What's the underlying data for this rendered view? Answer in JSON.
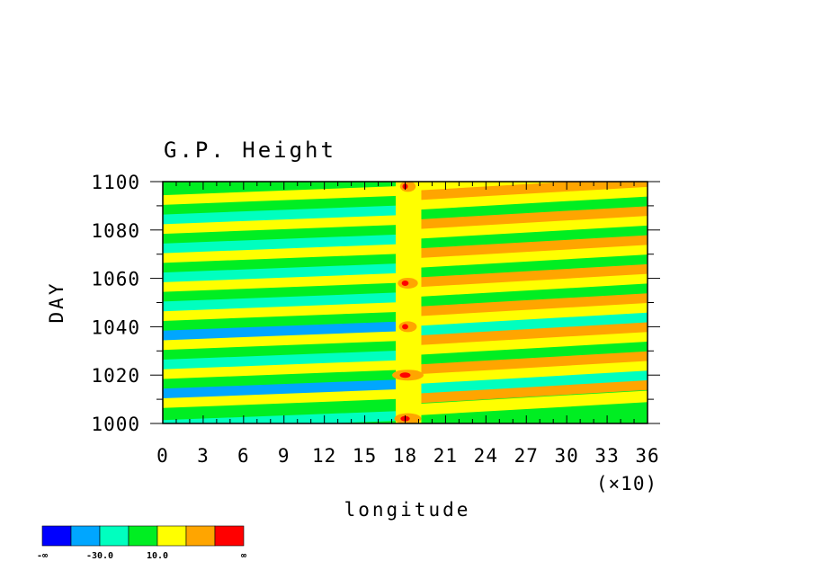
{
  "chart_data": {
    "type": "heatmap",
    "title": "G.P. Height",
    "xlabel": "longitude",
    "ylabel": "DAY",
    "x_scale_note": "(×10)",
    "xlim": [
      0,
      36
    ],
    "ylim": [
      1000,
      1100
    ],
    "x_ticks": [
      "0",
      "3",
      "6",
      "9",
      "12",
      "15",
      "18",
      "21",
      "24",
      "27",
      "30",
      "33",
      "36"
    ],
    "y_ticks": [
      "1000",
      "1020",
      "1040",
      "1060",
      "1080",
      "1100"
    ],
    "colorbar": {
      "colors": [
        "#0000ff",
        "#00a6ff",
        "#00ffbf",
        "#00ee22",
        "#ffff00",
        "#ffa500",
        "#ff0000"
      ],
      "labels": [
        "-∞",
        "-30.0",
        "10.0",
        "∞"
      ]
    },
    "bands": [
      {
        "day": 1002,
        "level": 2
      },
      {
        "day": 1006,
        "level": 3
      },
      {
        "day": 1011,
        "level": 4
      },
      {
        "day": 1015,
        "level": 1
      },
      {
        "day": 1019,
        "level": 3
      },
      {
        "day": 1023,
        "level": 4
      },
      {
        "day": 1027,
        "level": 2
      },
      {
        "day": 1031,
        "level": 3
      },
      {
        "day": 1035,
        "level": 4
      },
      {
        "day": 1039,
        "level": 1
      },
      {
        "day": 1043,
        "level": 3
      },
      {
        "day": 1047,
        "level": 4
      },
      {
        "day": 1051,
        "level": 2
      },
      {
        "day": 1055,
        "level": 3
      },
      {
        "day": 1059,
        "level": 4
      },
      {
        "day": 1063,
        "level": 2
      },
      {
        "day": 1067,
        "level": 3
      },
      {
        "day": 1071,
        "level": 4
      },
      {
        "day": 1075,
        "level": 2
      },
      {
        "day": 1079,
        "level": 3
      },
      {
        "day": 1083,
        "level": 4
      },
      {
        "day": 1087,
        "level": 2
      },
      {
        "day": 1091,
        "level": 3
      },
      {
        "day": 1095,
        "level": 4
      },
      {
        "day": 1099,
        "level": 3
      }
    ]
  }
}
